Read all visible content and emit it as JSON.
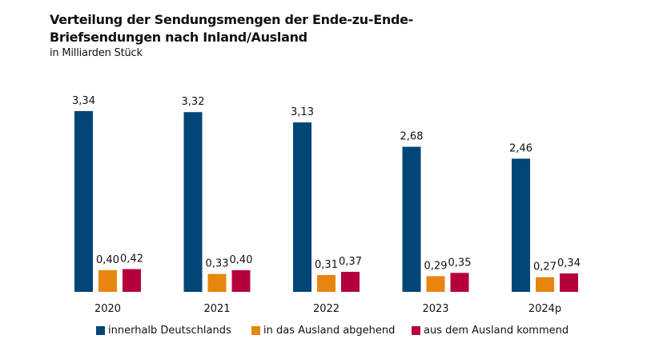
{
  "chart_data": {
    "type": "bar",
    "title": "Verteilung der Sendungsmengen der Ende-zu-Ende-Briefsendungen nach Inland/Ausland",
    "subtitle": "in Milliarden Stück",
    "categories": [
      "2020",
      "2021",
      "2022",
      "2023",
      "2024p"
    ],
    "series": [
      {
        "name": "innerhalb Deutschlands",
        "color": "#004677",
        "values": [
          3.34,
          3.32,
          3.13,
          2.68,
          2.46
        ],
        "labels": [
          "3,34",
          "3,32",
          "3,13",
          "2,68",
          "2,46"
        ]
      },
      {
        "name": "in das Ausland abgehend",
        "color": "#E8850F",
        "values": [
          0.4,
          0.33,
          0.31,
          0.29,
          0.27
        ],
        "labels": [
          "0,40",
          "0,33",
          "0,31",
          "0,29",
          "0,27"
        ]
      },
      {
        "name": "aus dem Ausland kommend",
        "color": "#B5003C",
        "values": [
          0.42,
          0.4,
          0.37,
          0.35,
          0.34
        ],
        "labels": [
          "0,42",
          "0,40",
          "0,37",
          "0,35",
          "0,34"
        ]
      }
    ],
    "ylim": [
      0,
      3.5
    ],
    "grid": false,
    "legend": "bottom"
  }
}
